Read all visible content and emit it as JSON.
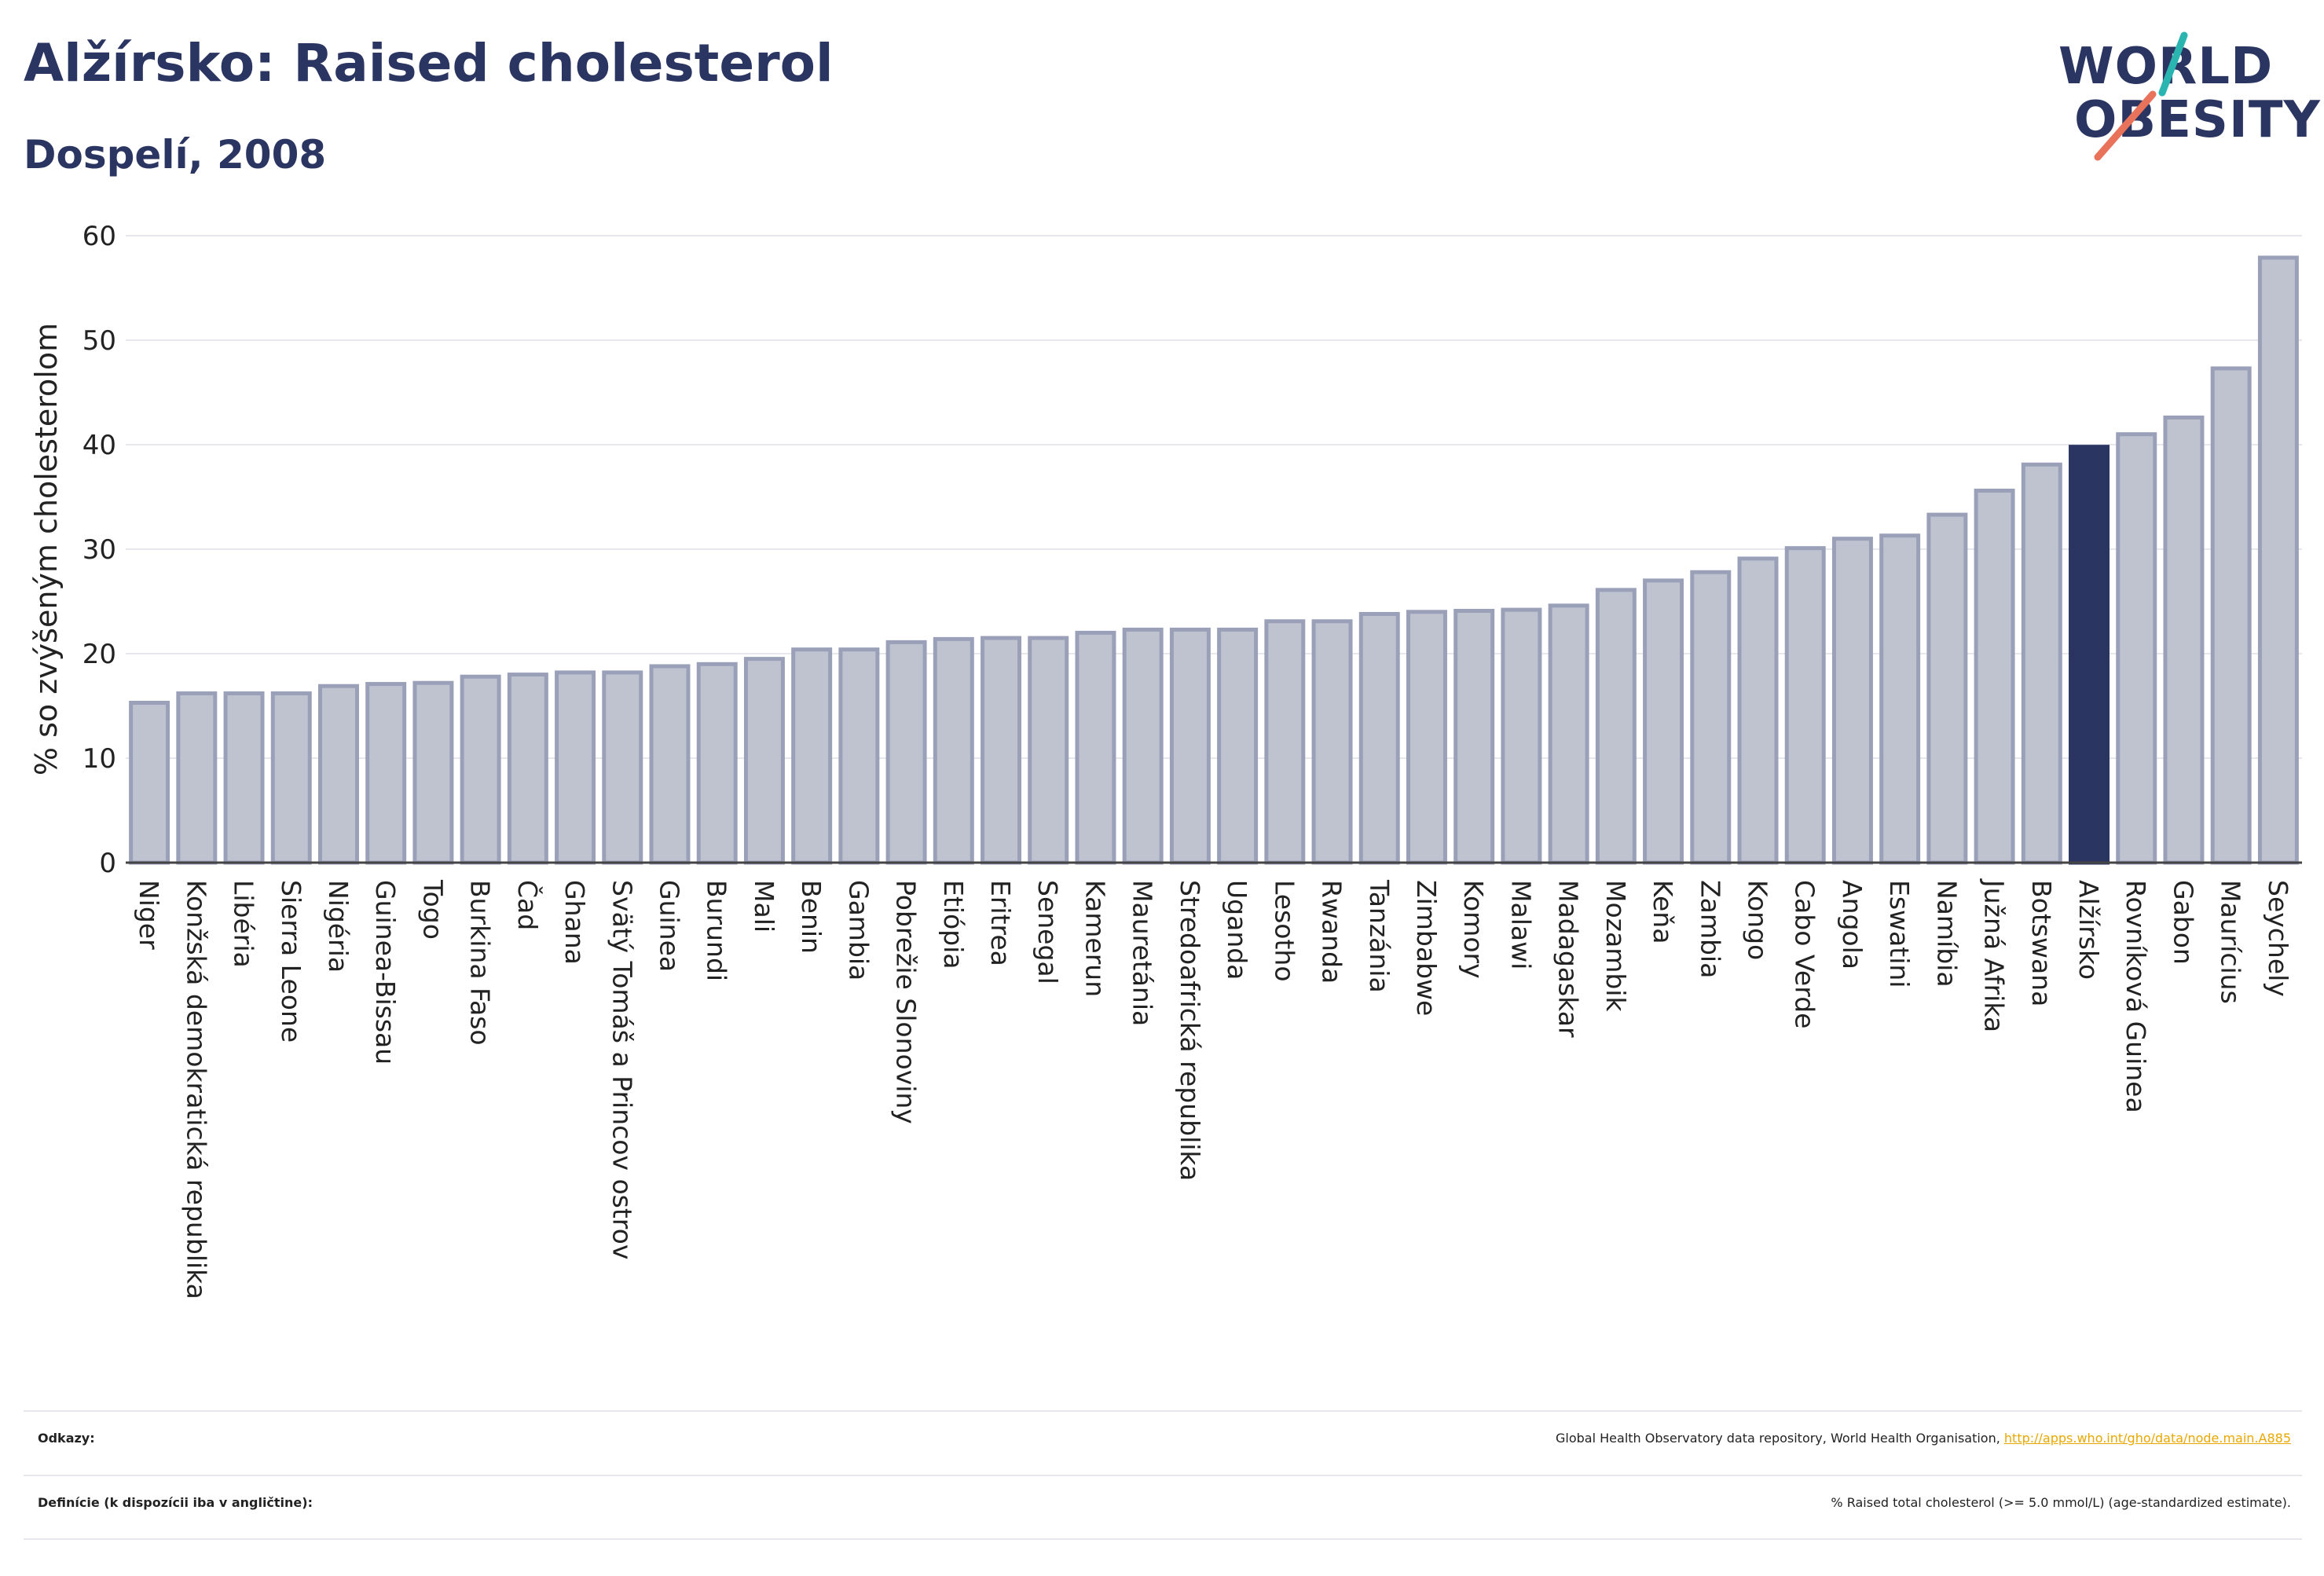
{
  "header": {
    "title": "Alžírsko: Raised cholesterol",
    "subtitle": "Dospelí, 2008"
  },
  "logo": {
    "line1": "WORLD",
    "line2": "OBESITY",
    "colors": {
      "text": "#2b3561",
      "slash_top": "#2ab5b0",
      "slash_bottom": "#e8735a"
    }
  },
  "chart_data": {
    "type": "bar",
    "ylabel": "% so zvýšeným cholesterolom",
    "ylim": [
      0,
      60
    ],
    "yticks": [
      0,
      10,
      20,
      30,
      40,
      50,
      60
    ],
    "grid": true,
    "highlight": "Alžírsko",
    "colors": {
      "bar": "#bfc3d0",
      "bar_border": "#9aa0b8",
      "highlight": "#2b3561"
    },
    "categories": [
      "Niger",
      "Konžská demokratická republika",
      "Libéria",
      "Sierra Leone",
      "Nigéria",
      "Guinea-Bissau",
      "Togo",
      "Burkina Faso",
      "Čad",
      "Ghana",
      "Svätý Tomáš a Princov ostrov",
      "Guinea",
      "Burundi",
      "Mali",
      "Benin",
      "Gambia",
      "Pobrežie Slonoviny",
      "Etiópia",
      "Eritrea",
      "Senegal",
      "Kamerun",
      "Mauretánia",
      "Stredoafrická republika",
      "Uganda",
      "Lesotho",
      "Rwanda",
      "Tanzánia",
      "Zimbabwe",
      "Komory",
      "Malawi",
      "Madagaskar",
      "Mozambik",
      "Keňa",
      "Zambia",
      "Kongo",
      "Cabo Verde",
      "Angola",
      "Eswatini",
      "Namíbia",
      "Južná Afrika",
      "Botswana",
      "Alžírsko",
      "Rovníková Guinea",
      "Gabon",
      "Maurícius",
      "Seychely"
    ],
    "values": [
      15.3,
      16.2,
      16.2,
      16.2,
      16.9,
      17.1,
      17.2,
      17.8,
      18.0,
      18.2,
      18.2,
      18.8,
      19.0,
      19.5,
      20.4,
      20.4,
      21.1,
      21.4,
      21.5,
      21.5,
      22.0,
      22.3,
      22.3,
      22.3,
      23.1,
      23.1,
      23.8,
      24.0,
      24.1,
      24.2,
      24.6,
      26.1,
      27.0,
      27.8,
      29.1,
      30.1,
      31.0,
      31.3,
      33.3,
      35.6,
      38.1,
      39.8,
      41.0,
      42.6,
      47.3,
      57.9
    ]
  },
  "footer": {
    "references_label": "Odkazy:",
    "references_text": "Global Health Observatory data repository, World Health Organisation, ",
    "references_link": "http://apps.who.int/gho/data/node.main.A885",
    "definitions_label": "Definície (k dispozícii iba v angličtine):",
    "definitions_text": "% Raised total cholesterol (>= 5.0 mmol/L) (age-standardized estimate)."
  }
}
